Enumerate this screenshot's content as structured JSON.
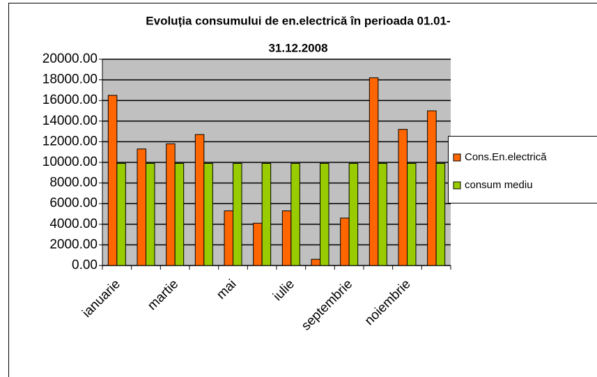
{
  "chart_data": {
    "type": "bar",
    "title": [
      "Evoluția consumului de en.electrică în perioada 01.01-",
      "31.12.2008"
    ],
    "categories": [
      "ianuarie",
      null,
      "martie",
      null,
      "mai",
      null,
      "iulie",
      null,
      "septembrie",
      null,
      "noiembrie",
      null
    ],
    "series": [
      {
        "name": "Cons.En.electrică",
        "color": "#ff6600",
        "values": [
          16500,
          11300,
          11800,
          12700,
          5300,
          4100,
          5300,
          600,
          4600,
          18200,
          13200,
          15000
        ]
      },
      {
        "name": "consum mediu",
        "color": "#99cc00",
        "values": [
          9900,
          9900,
          9900,
          9900,
          9900,
          9900,
          9900,
          9900,
          9900,
          9900,
          9900,
          9900
        ]
      }
    ],
    "ylim": [
      0,
      20000
    ],
    "yticks": [
      {
        "value": 0,
        "label": "0.00"
      },
      {
        "value": 2000,
        "label": "2000.00"
      },
      {
        "value": 4000,
        "label": "4000.00"
      },
      {
        "value": 6000,
        "label": "6000.00"
      },
      {
        "value": 8000,
        "label": "8000.00"
      },
      {
        "value": 10000,
        "label": "10000.00"
      },
      {
        "value": 12000,
        "label": "12000.00"
      },
      {
        "value": 14000,
        "label": "14000.00"
      },
      {
        "value": 16000,
        "label": "16000.00"
      },
      {
        "value": 18000,
        "label": "18000.00"
      },
      {
        "value": 20000,
        "label": "20000.00"
      }
    ],
    "grid": true,
    "plot_background": "#c0c0c0",
    "legend": "right"
  }
}
